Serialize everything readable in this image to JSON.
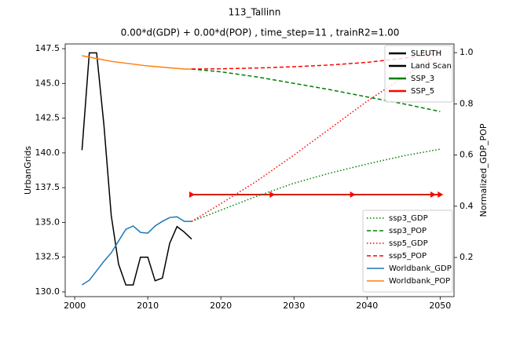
{
  "chart_data": {
    "type": "line",
    "title": "113_Tallinn",
    "subtitle": "0.00*d(GDP) + 0.00*d(POP) , time_step=11 , trainR2=1.00",
    "y_label": "UrbanGrids",
    "y2_label": "Normalized_GDP_POP",
    "xlim": [
      1998.7,
      2051.9
    ],
    "xticks": [
      2000,
      2010,
      2020,
      2030,
      2040,
      2050
    ],
    "ylim": [
      129.66,
      147.84
    ],
    "yticks": [
      {
        "value": 130.0,
        "label": "130.0"
      },
      132.5,
      {
        "value": 135.0,
        "label": "135.0"
      },
      137.5,
      {
        "value": 140.0,
        "label": "140.0"
      },
      142.5,
      {
        "value": 145.0,
        "label": "145.0"
      },
      147.5
    ],
    "y2lim": [
      0.047,
      1.034
    ],
    "y2ticks": [
      0.2,
      0.4,
      0.6,
      0.8,
      {
        "value": 1.0,
        "label": "1.0"
      }
    ],
    "legend": "upper right",
    "legend2": "lower right",
    "series": [
      {
        "name": "SLEUTH",
        "color": "#000000",
        "linestyle": "solid",
        "axis": "y",
        "x": [
          2001,
          2002,
          2003,
          2004,
          2005,
          2006,
          2007,
          2008,
          2009,
          2010,
          2011,
          2012,
          2013,
          2014,
          2015,
          2016
        ],
        "values": [
          140.2,
          147.2,
          147.2,
          142.0,
          135.5,
          132.0,
          130.5,
          130.5,
          132.5,
          132.5,
          130.8,
          131.0,
          133.5,
          134.7,
          134.3,
          133.8
        ]
      },
      {
        "name": "Land Scan",
        "color": "#000000",
        "linestyle": "solid",
        "axis": "y",
        "x": [
          2016,
          2050
        ],
        "values": [
          137.0,
          137.0
        ]
      },
      {
        "name": "SSP_3",
        "color": "#008000",
        "linestyle": "solid",
        "axis": "y",
        "x": [
          2016,
          2050
        ],
        "values": [
          137.0,
          137.0
        ]
      },
      {
        "name": "SSP_5",
        "color": "#ff0000",
        "linestyle": "solid",
        "axis": "y",
        "marker": "triangle-right",
        "x": [
          2016,
          2027,
          2038,
          2049,
          2050
        ],
        "values": [
          137.0,
          137.0,
          137.0,
          137.0,
          137.0
        ]
      },
      {
        "name": "ssp3_GDP",
        "color": "#008000",
        "linestyle": "dotted",
        "axis": "y2",
        "x": [
          2016,
          2020,
          2025,
          2030,
          2035,
          2040,
          2045,
          2050
        ],
        "values": [
          0.341,
          0.385,
          0.44,
          0.49,
          0.53,
          0.565,
          0.597,
          0.623
        ]
      },
      {
        "name": "ssp3_POP",
        "color": "#008000",
        "linestyle": "dashed",
        "axis": "y2",
        "x": [
          2016,
          2020,
          2025,
          2030,
          2035,
          2040,
          2045,
          2050
        ],
        "values": [
          0.936,
          0.925,
          0.905,
          0.88,
          0.855,
          0.827,
          0.8,
          0.77
        ]
      },
      {
        "name": "ssp5_GDP",
        "color": "#ff0000",
        "linestyle": "dotted",
        "axis": "y2",
        "x": [
          2016,
          2020,
          2025,
          2030,
          2035,
          2040,
          2045,
          2050
        ],
        "values": [
          0.341,
          0.41,
          0.5,
          0.6,
          0.705,
          0.81,
          0.905,
          1.0
        ]
      },
      {
        "name": "ssp5_POP",
        "color": "#ff0000",
        "linestyle": "dashed",
        "axis": "y2",
        "x": [
          2016,
          2020,
          2025,
          2030,
          2035,
          2040,
          2045,
          2050
        ],
        "values": [
          0.936,
          0.937,
          0.94,
          0.945,
          0.952,
          0.962,
          0.978,
          1.0
        ]
      },
      {
        "name": "Worldbank_GDP",
        "color": "#1f77b4",
        "linestyle": "solid",
        "axis": "y2",
        "x": [
          2001,
          2002,
          2003,
          2004,
          2005,
          2006,
          2007,
          2008,
          2009,
          2010,
          2011,
          2012,
          2013,
          2014,
          2015,
          2016
        ],
        "values": [
          0.093,
          0.111,
          0.148,
          0.185,
          0.218,
          0.264,
          0.31,
          0.323,
          0.298,
          0.295,
          0.323,
          0.341,
          0.356,
          0.359,
          0.341,
          0.341
        ]
      },
      {
        "name": "Worldbank_POP",
        "color": "#ff7f0e",
        "linestyle": "solid",
        "axis": "y2",
        "x": [
          2001,
          2005,
          2010,
          2015,
          2016
        ],
        "values": [
          0.988,
          0.966,
          0.948,
          0.936,
          0.936
        ]
      }
    ]
  }
}
